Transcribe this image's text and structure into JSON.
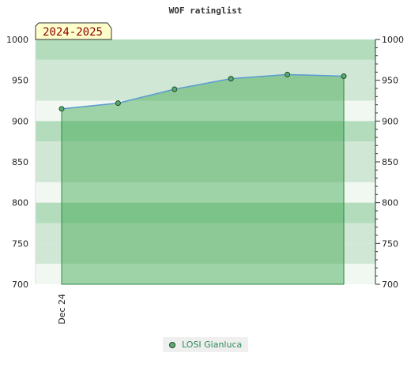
{
  "chart_data": {
    "type": "area",
    "title": "WOF ratinglist",
    "badge": "2024-2025",
    "x": [
      0,
      1,
      2,
      3,
      4,
      5
    ],
    "x_tick_labels": [
      {
        "x": 0,
        "label": "Dec 24"
      }
    ],
    "series": [
      {
        "name": "LOSI Gianluca",
        "values": [
          915,
          922,
          939,
          952,
          957,
          955
        ]
      }
    ],
    "ylim": [
      700,
      1000
    ],
    "yticks": [
      700,
      750,
      800,
      850,
      900,
      950,
      1000
    ],
    "grid": "horizontal bands",
    "legend_position": "bottom-center",
    "colors": {
      "line": "#5b9bd5",
      "fill": "#3aa54b",
      "marker": "#5aa96f",
      "band_light": "#f1f8f2",
      "band_mid": "#cfe7d4",
      "band_dark": "#b2dcbc"
    }
  }
}
